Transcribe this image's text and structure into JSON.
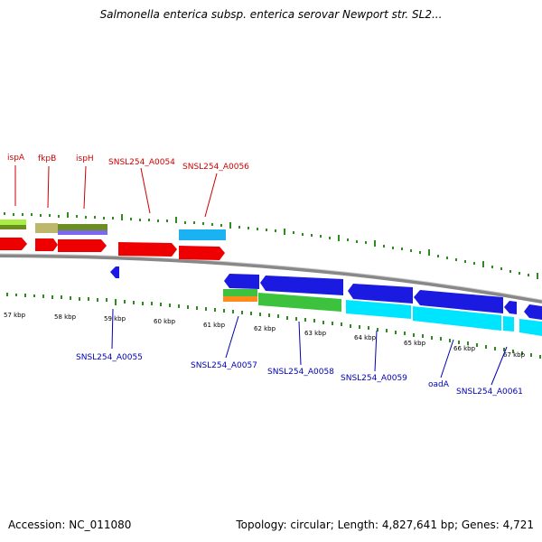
{
  "header": {
    "title": "Salmonella enterica subsp. enterica serovar Newport str. SL2..."
  },
  "footer": {
    "accession": "Accession: NC_011080",
    "summary": "Topology: circular; Length: 4,827,641 bp; Genes: 4,721"
  },
  "map": {
    "kbp_labels": [
      "57 kbp",
      "58 kbp",
      "59 kbp",
      "60 kbp",
      "61 kbp",
      "62 kbp",
      "63 kbp",
      "64 kbp",
      "65 kbp",
      "66 kbp",
      "67 kbp"
    ],
    "top_gene_labels": [
      "ispA",
      "fkpB",
      "ispH",
      "SNSL254_A0054",
      "SNSL254_A0056"
    ],
    "bottom_gene_labels": [
      "SNSL254_A0055",
      "SNSL254_A0057",
      "SNSL254_A0058",
      "SNSL254_A0059",
      "oadA",
      "SNSL254_A0061"
    ],
    "colors": {
      "forward_cds": "#ee0000",
      "reverse_cds": "#1a1ae0",
      "label_top": "#cc0000",
      "label_bottom": "#0000b3",
      "ticks": "#2e8b1e",
      "backbone": "#888888",
      "cog_cyan": "#00e5ff",
      "cog_lightblue": "#1ab2f0",
      "cog_green": "#3cc23c",
      "cog_lime": "#a8ee44",
      "cog_khaki": "#bdb76b",
      "cog_olive": "#6b8e23",
      "cog_purple": "#7b68ee",
      "cog_orange": "#ff8c1a"
    }
  }
}
